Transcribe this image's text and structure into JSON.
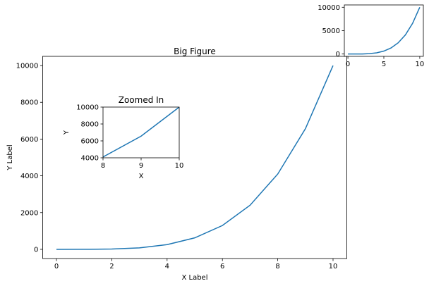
{
  "chart_data": [
    {
      "type": "line",
      "title": "Big Figure",
      "x_label": "X Label",
      "y_label": "Y Label",
      "x": [
        0,
        1,
        2,
        3,
        4,
        5,
        6,
        7,
        8,
        9,
        10
      ],
      "series": [
        {
          "color": "#1f77b4",
          "values": [
            0,
            1,
            16,
            81,
            256,
            625,
            1296,
            2401,
            4096,
            6561,
            10000
          ]
        }
      ],
      "xlim": [
        -0.5,
        10.5
      ],
      "ylim": [
        -500,
        10500
      ],
      "xticks": [
        0,
        2,
        4,
        6,
        8,
        10
      ],
      "yticks": [
        0,
        2000,
        4000,
        6000,
        8000,
        10000
      ],
      "grid": false
    },
    {
      "type": "line",
      "title": "Zoomed In",
      "x_label": "X",
      "y_label": "Y",
      "x": [
        8,
        9,
        10
      ],
      "series": [
        {
          "color": "#1f77b4",
          "values": [
            4096,
            6561,
            10000
          ]
        }
      ],
      "xlim": [
        8,
        10
      ],
      "ylim": [
        4000,
        10000
      ],
      "xticks": [
        8,
        9,
        10
      ],
      "yticks": [
        4000,
        6000,
        8000,
        10000
      ],
      "grid": false
    },
    {
      "type": "line",
      "x": [
        0,
        1,
        2,
        3,
        4,
        5,
        6,
        7,
        8,
        9,
        10
      ],
      "series": [
        {
          "color": "#1f77b4",
          "values": [
            0,
            1,
            16,
            81,
            256,
            625,
            1296,
            2401,
            4096,
            6561,
            10000
          ]
        }
      ],
      "xlim": [
        -0.5,
        10.5
      ],
      "ylim": [
        -500,
        10500
      ],
      "xticks": [
        0,
        5,
        10
      ],
      "yticks": [
        0,
        5000,
        10000
      ],
      "grid": false
    }
  ]
}
